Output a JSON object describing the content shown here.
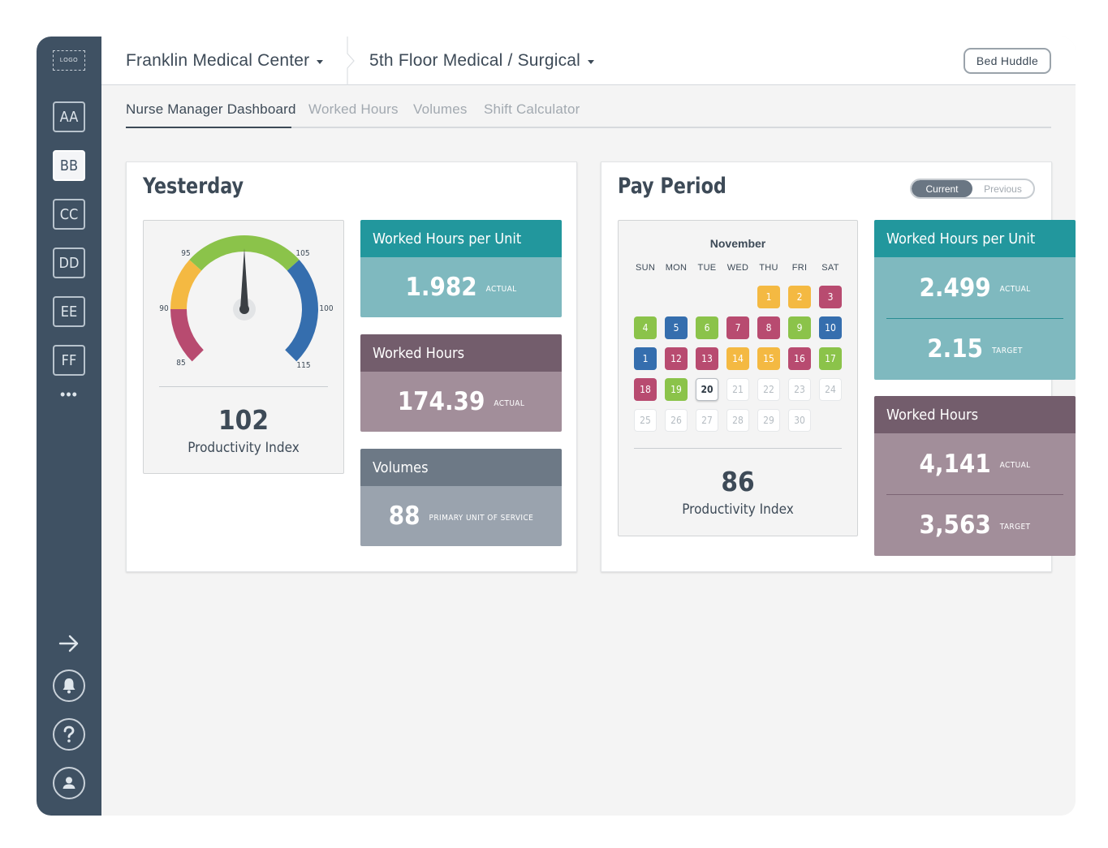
{
  "logo": "LOGO",
  "sidebar": {
    "units": [
      "AA",
      "BB",
      "CC",
      "DD",
      "EE",
      "FF"
    ],
    "active_unit": "BB",
    "more": "•••",
    "icons": [
      "arrow-right-icon",
      "bell-icon",
      "help-icon",
      "user-icon"
    ]
  },
  "header": {
    "facility": "Franklin Medical Center",
    "unit": "5th Floor Medical / Surgical",
    "bed_huddle": "Bed Huddle"
  },
  "tabs": [
    "Nurse Manager Dashboard",
    "Worked Hours",
    "Volumes",
    "Shift Calculator"
  ],
  "yesterday": {
    "title": "Yesterday",
    "gauge": {
      "value": 102,
      "label": "Productivity Index",
      "ticks": [
        "85",
        "90",
        "95",
        "105",
        "100",
        "115"
      ],
      "colors": {
        "red": "#b84b70",
        "yellow": "#f4b942",
        "green": "#8bc34a",
        "blue": "#356eae"
      }
    },
    "worked_hours_per_unit": {
      "title": "Worked Hours per Unit",
      "value": "1.982",
      "sub": "ACTUAL"
    },
    "worked_hours": {
      "title": "Worked Hours",
      "value": "174.39",
      "sub": "ACTUAL"
    },
    "volumes": {
      "title": "Volumes",
      "value": "88",
      "sub": "PRIMARY UNIT OF SERVICE"
    }
  },
  "pay_period": {
    "title": "Pay Period",
    "toggle": {
      "current": "Current",
      "previous": "Previous",
      "selected": "Current"
    },
    "calendar": {
      "month": "November",
      "dow": [
        "SUN",
        "MON",
        "TUE",
        "WED",
        "THU",
        "FRI",
        "SAT"
      ],
      "first_weekday": 4,
      "colors": {
        "green": "#8bc34a",
        "blue": "#356eae",
        "red": "#b84b70",
        "yellow": "#f4b942"
      },
      "days": [
        {
          "d": "1",
          "s": "yellow"
        },
        {
          "d": "2",
          "s": "yellow"
        },
        {
          "d": "3",
          "s": "red"
        },
        {
          "d": "4",
          "s": "green"
        },
        {
          "d": "5",
          "s": "blue"
        },
        {
          "d": "6",
          "s": "green"
        },
        {
          "d": "7",
          "s": "red"
        },
        {
          "d": "8",
          "s": "red"
        },
        {
          "d": "9",
          "s": "green"
        },
        {
          "d": "10",
          "s": "blue"
        },
        {
          "d": "1",
          "s": "blue"
        },
        {
          "d": "12",
          "s": "red"
        },
        {
          "d": "13",
          "s": "red"
        },
        {
          "d": "14",
          "s": "yellow"
        },
        {
          "d": "15",
          "s": "yellow"
        },
        {
          "d": "16",
          "s": "red"
        },
        {
          "d": "17",
          "s": "green"
        },
        {
          "d": "18",
          "s": "red"
        },
        {
          "d": "19",
          "s": "green"
        },
        {
          "d": "20",
          "s": "today"
        },
        {
          "d": "21",
          "s": "future"
        },
        {
          "d": "22",
          "s": "future"
        },
        {
          "d": "23",
          "s": "future"
        },
        {
          "d": "24",
          "s": "future"
        },
        {
          "d": "25",
          "s": "future"
        },
        {
          "d": "26",
          "s": "future"
        },
        {
          "d": "27",
          "s": "future"
        },
        {
          "d": "28",
          "s": "future"
        },
        {
          "d": "29",
          "s": "future"
        },
        {
          "d": "30",
          "s": "future"
        }
      ]
    },
    "productivity": {
      "value": "86",
      "label": "Productivity Index"
    },
    "worked_hours_per_unit": {
      "title": "Worked Hours per Unit",
      "actual": "2.499",
      "actual_sub": "ACTUAL",
      "target": "2.15",
      "target_sub": "TARGET"
    },
    "worked_hours": {
      "title": "Worked Hours",
      "actual": "4,141",
      "actual_sub": "ACTUAL",
      "target": "3,563",
      "target_sub": "TARGET"
    }
  }
}
